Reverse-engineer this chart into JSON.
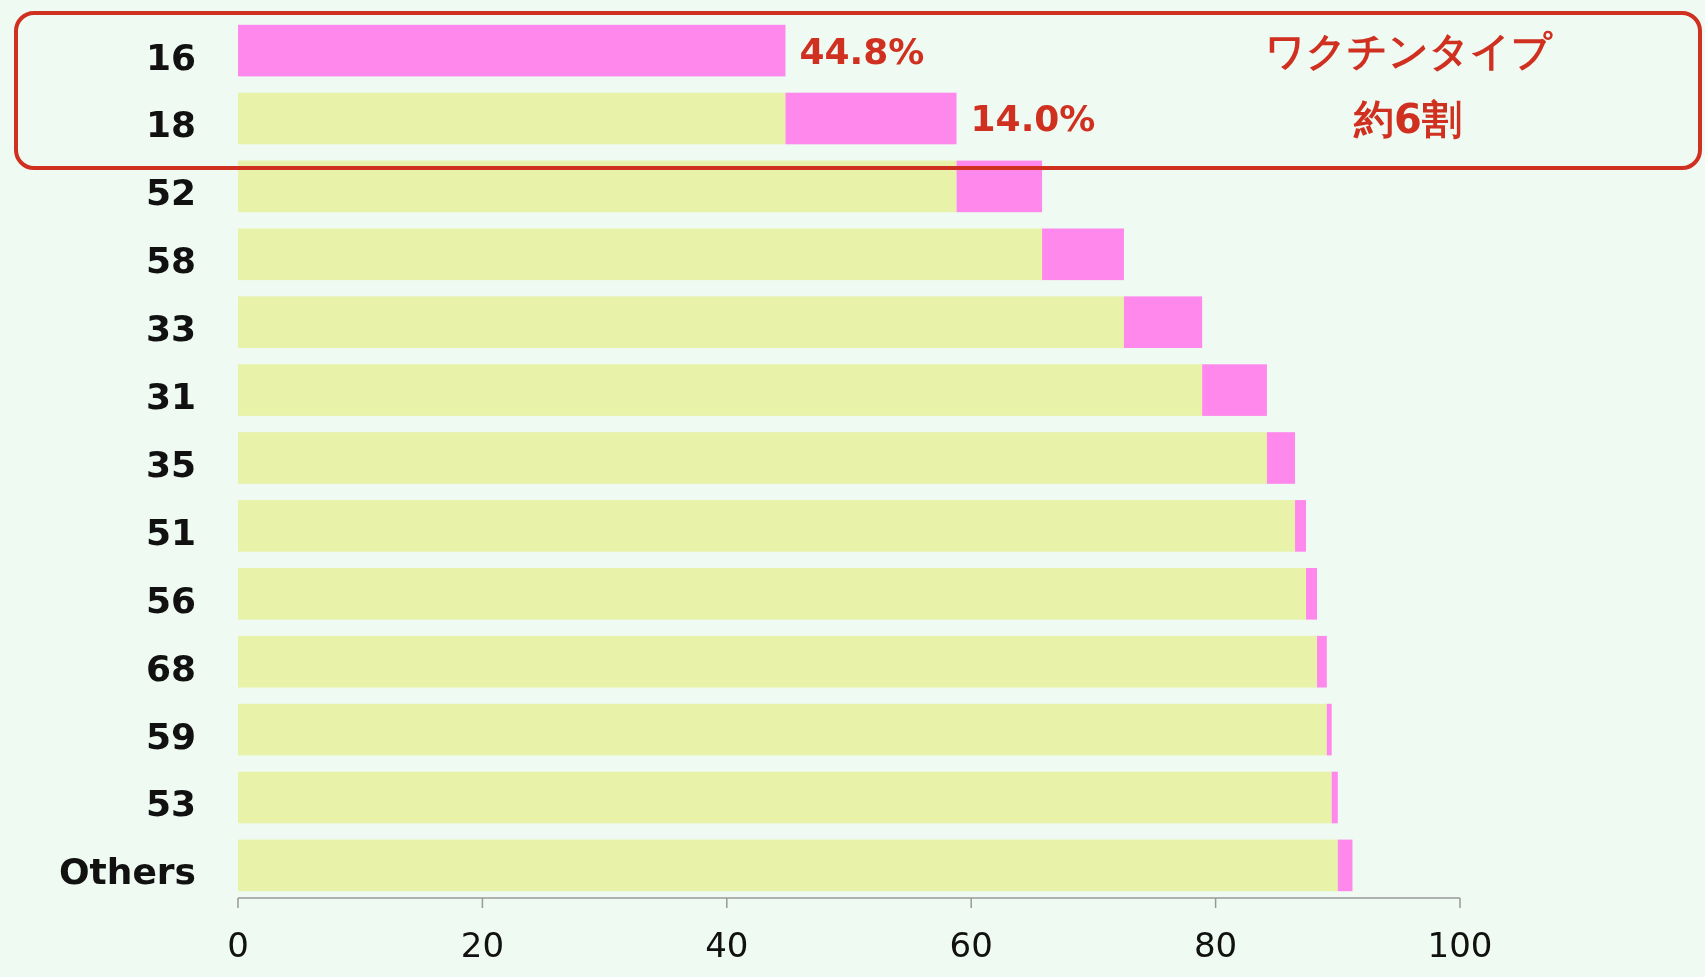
{
  "chart_data": {
    "type": "bar",
    "orientation": "horizontal",
    "stacked": true,
    "categories": [
      "16",
      "18",
      "52",
      "58",
      "33",
      "31",
      "35",
      "51",
      "56",
      "68",
      "59",
      "53",
      "Others"
    ],
    "series": [
      {
        "color": "#e8f2a8",
        "values": [
          0,
          44.8,
          58.8,
          65.8,
          72.5,
          78.9,
          84.2,
          86.5,
          87.4,
          88.3,
          89.1,
          89.5,
          90.0
        ]
      },
      {
        "color": "#ff88ec",
        "values": [
          44.8,
          14.0,
          7.0,
          6.7,
          6.4,
          5.3,
          2.3,
          0.9,
          0.9,
          0.8,
          0.4,
          0.5,
          1.2
        ],
        "value_labels": [
          "44.8%",
          "14.0%",
          null,
          null,
          null,
          null,
          null,
          null,
          null,
          null,
          null,
          null,
          null
        ]
      }
    ],
    "xlim": [
      0,
      100
    ],
    "xticks": [
      0,
      20,
      40,
      60,
      80,
      100
    ],
    "annotations": [
      "ワクチンタイプ",
      "約6割"
    ],
    "grid": false
  }
}
